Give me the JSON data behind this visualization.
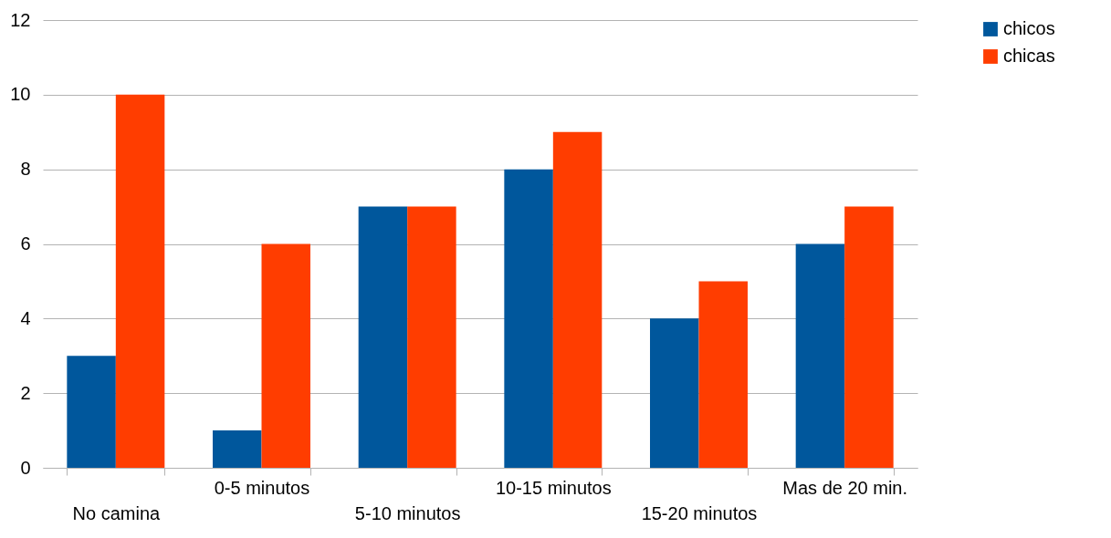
{
  "chart_data": {
    "type": "bar",
    "categories": [
      "No camina",
      "0-5 minutos",
      "5-10 minutos",
      "10-15 minutos",
      "15-20 minutos",
      "Mas de 20 min."
    ],
    "series": [
      {
        "name": "chicos",
        "color": "#00579c",
        "values": [
          3,
          1,
          7,
          8,
          4,
          6
        ]
      },
      {
        "name": "chicas",
        "color": "#ff3d00",
        "values": [
          10,
          6,
          7,
          9,
          5,
          7
        ]
      }
    ],
    "ylim": [
      0,
      12
    ],
    "yticks": [
      0,
      2,
      4,
      6,
      8,
      10,
      12
    ],
    "grid": "y",
    "legend": "right"
  }
}
